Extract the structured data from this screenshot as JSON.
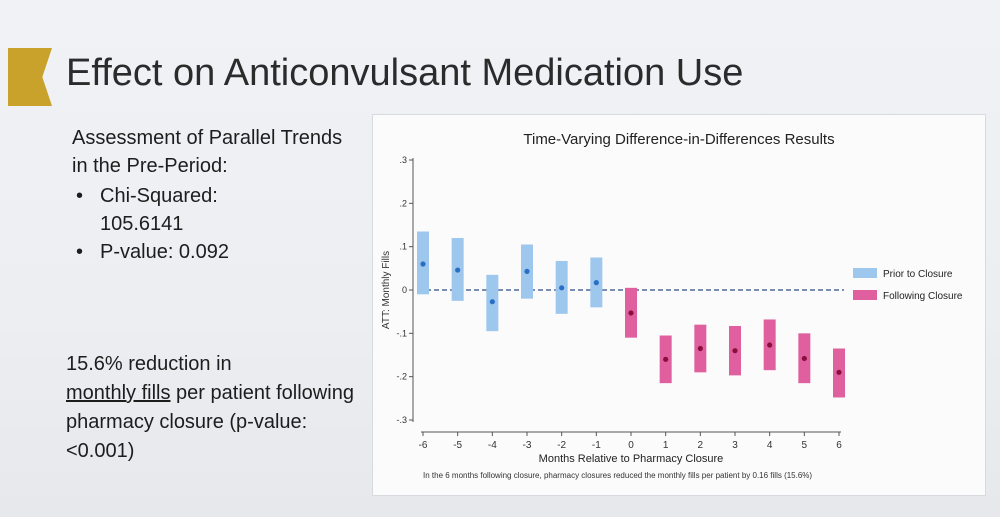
{
  "slide_title": "Effect on Anticonvulsant Medication Use",
  "assessment": {
    "heading": "Assessment of Parallel Trends in the Pre-Period:",
    "bullets": [
      {
        "label": "Chi-Squared:",
        "value": "105.6141"
      },
      {
        "label": "P-value: 0.092"
      }
    ]
  },
  "reduction": {
    "part1": "15.6% reduction in",
    "underlined": "monthly fills",
    "part2": "per patient following pharmacy closure (p-value: <0.001)"
  },
  "chart_data": {
    "type": "scatter",
    "title": "Time-Varying Difference-in-Differences Results",
    "xlabel": "Months Relative to Pharmacy Closure",
    "ylabel": "ATT: Monthly Fills",
    "xlim": [
      -6,
      6
    ],
    "ylim": [
      -0.3,
      0.3
    ],
    "x_ticks": [
      -6,
      -5,
      -4,
      -3,
      -2,
      -1,
      0,
      1,
      2,
      3,
      4,
      5,
      6
    ],
    "y_ticks": [
      0.3,
      0.2,
      0.1,
      0,
      -0.1,
      -0.2,
      -0.3
    ],
    "y_tick_labels": [
      ".3",
      ".2",
      ".1",
      "0",
      "-.1",
      "-.2",
      "-.3"
    ],
    "reference_line": 0,
    "series": [
      {
        "name": "Prior to Closure",
        "color": "#9dc7ec",
        "point_color": "#2a6fc4",
        "points": [
          {
            "x": -6,
            "y": 0.06,
            "lo": -0.01,
            "hi": 0.135
          },
          {
            "x": -5,
            "y": 0.046,
            "lo": -0.025,
            "hi": 0.12
          },
          {
            "x": -4,
            "y": -0.027,
            "lo": -0.095,
            "hi": 0.035
          },
          {
            "x": -3,
            "y": 0.043,
            "lo": -0.02,
            "hi": 0.105
          },
          {
            "x": -2,
            "y": 0.005,
            "lo": -0.055,
            "hi": 0.067
          },
          {
            "x": -1,
            "y": 0.017,
            "lo": -0.04,
            "hi": 0.075
          }
        ]
      },
      {
        "name": "Following Closure",
        "color": "#e0609f",
        "point_color": "#8a0f3d",
        "points": [
          {
            "x": 0,
            "y": -0.053,
            "lo": -0.11,
            "hi": 0.005
          },
          {
            "x": 1,
            "y": -0.16,
            "lo": -0.215,
            "hi": -0.105
          },
          {
            "x": 2,
            "y": -0.135,
            "lo": -0.19,
            "hi": -0.08
          },
          {
            "x": 3,
            "y": -0.14,
            "lo": -0.197,
            "hi": -0.083
          },
          {
            "x": 4,
            "y": -0.127,
            "lo": -0.185,
            "hi": -0.068
          },
          {
            "x": 5,
            "y": -0.158,
            "lo": -0.215,
            "hi": -0.1
          },
          {
            "x": 6,
            "y": -0.19,
            "lo": -0.248,
            "hi": -0.135
          }
        ]
      }
    ],
    "legend_position": "right",
    "footnote": "In the 6 months following closure, pharmacy closures reduced the monthly fills per patient by 0.16 fills (15.6%)"
  }
}
